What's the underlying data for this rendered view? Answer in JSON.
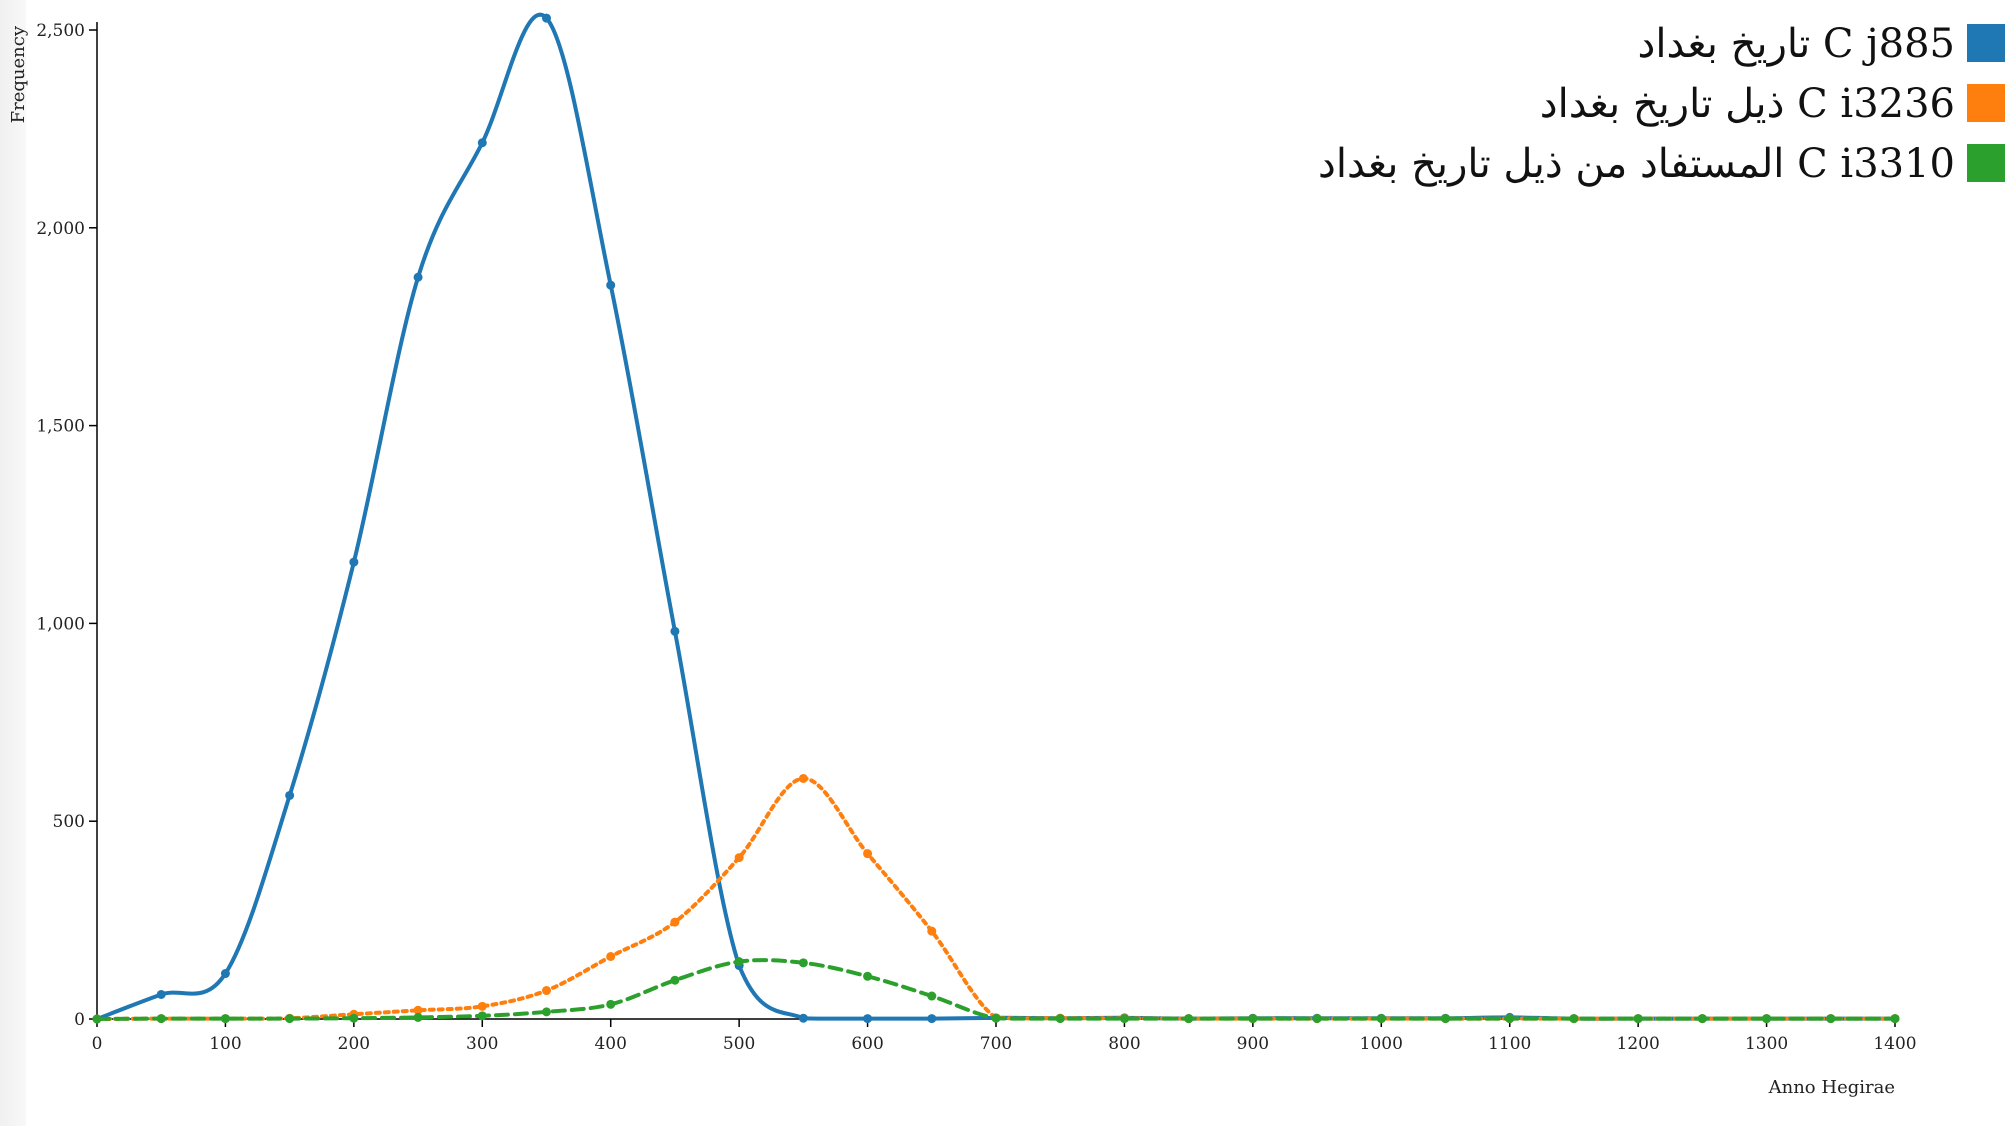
{
  "chart_data": {
    "type": "line",
    "xlabel": "Anno Hegirae",
    "ylabel": "Frequency",
    "xlim": [
      0,
      1400
    ],
    "ylim": [
      0,
      2500
    ],
    "x_ticks": [
      0,
      100,
      200,
      300,
      400,
      500,
      600,
      700,
      800,
      900,
      1000,
      1100,
      1200,
      1300,
      1400
    ],
    "y_ticks": [
      0,
      500,
      1000,
      1500,
      2000,
      2500
    ],
    "y_tick_labels": [
      "0",
      "500",
      "1,000",
      "1,500",
      "2,000",
      "2,500"
    ],
    "grid": false,
    "legend_position": "top-right",
    "x": [
      0,
      50,
      100,
      150,
      200,
      250,
      300,
      350,
      400,
      450,
      500,
      550,
      600,
      650,
      700,
      750,
      800,
      850,
      900,
      950,
      1000,
      1050,
      1100,
      1150,
      1200,
      1250,
      1300,
      1350,
      1400
    ],
    "series": [
      {
        "name": "تاريخ بغداد C j885",
        "color": "#1f77b4",
        "dash": "solid",
        "values": [
          0,
          62,
          115,
          565,
          1155,
          1875,
          2215,
          2530,
          1855,
          980,
          135,
          2,
          1,
          1,
          3,
          2,
          3,
          1,
          2,
          2,
          2,
          2,
          4,
          1,
          1,
          1,
          1,
          1,
          1
        ]
      },
      {
        "name": "ذيل تاريخ بغداد C i3236",
        "color": "#ff7f0e",
        "dash": "dotted",
        "values": [
          0,
          1,
          1,
          2,
          12,
          22,
          32,
          72,
          158,
          245,
          408,
          608,
          418,
          222,
          3,
          2,
          2,
          1,
          1,
          1,
          1,
          1,
          1,
          1,
          1,
          1,
          1,
          1,
          1
        ]
      },
      {
        "name": "المستفاد من ذيل تاريخ بغداد C i3310",
        "color": "#2ca02c",
        "dash": "dashed",
        "values": [
          0,
          1,
          1,
          1,
          2,
          4,
          8,
          18,
          37,
          98,
          145,
          142,
          108,
          58,
          2,
          1,
          1,
          1,
          1,
          1,
          1,
          1,
          1,
          1,
          1,
          1,
          1,
          1,
          1
        ]
      }
    ]
  }
}
